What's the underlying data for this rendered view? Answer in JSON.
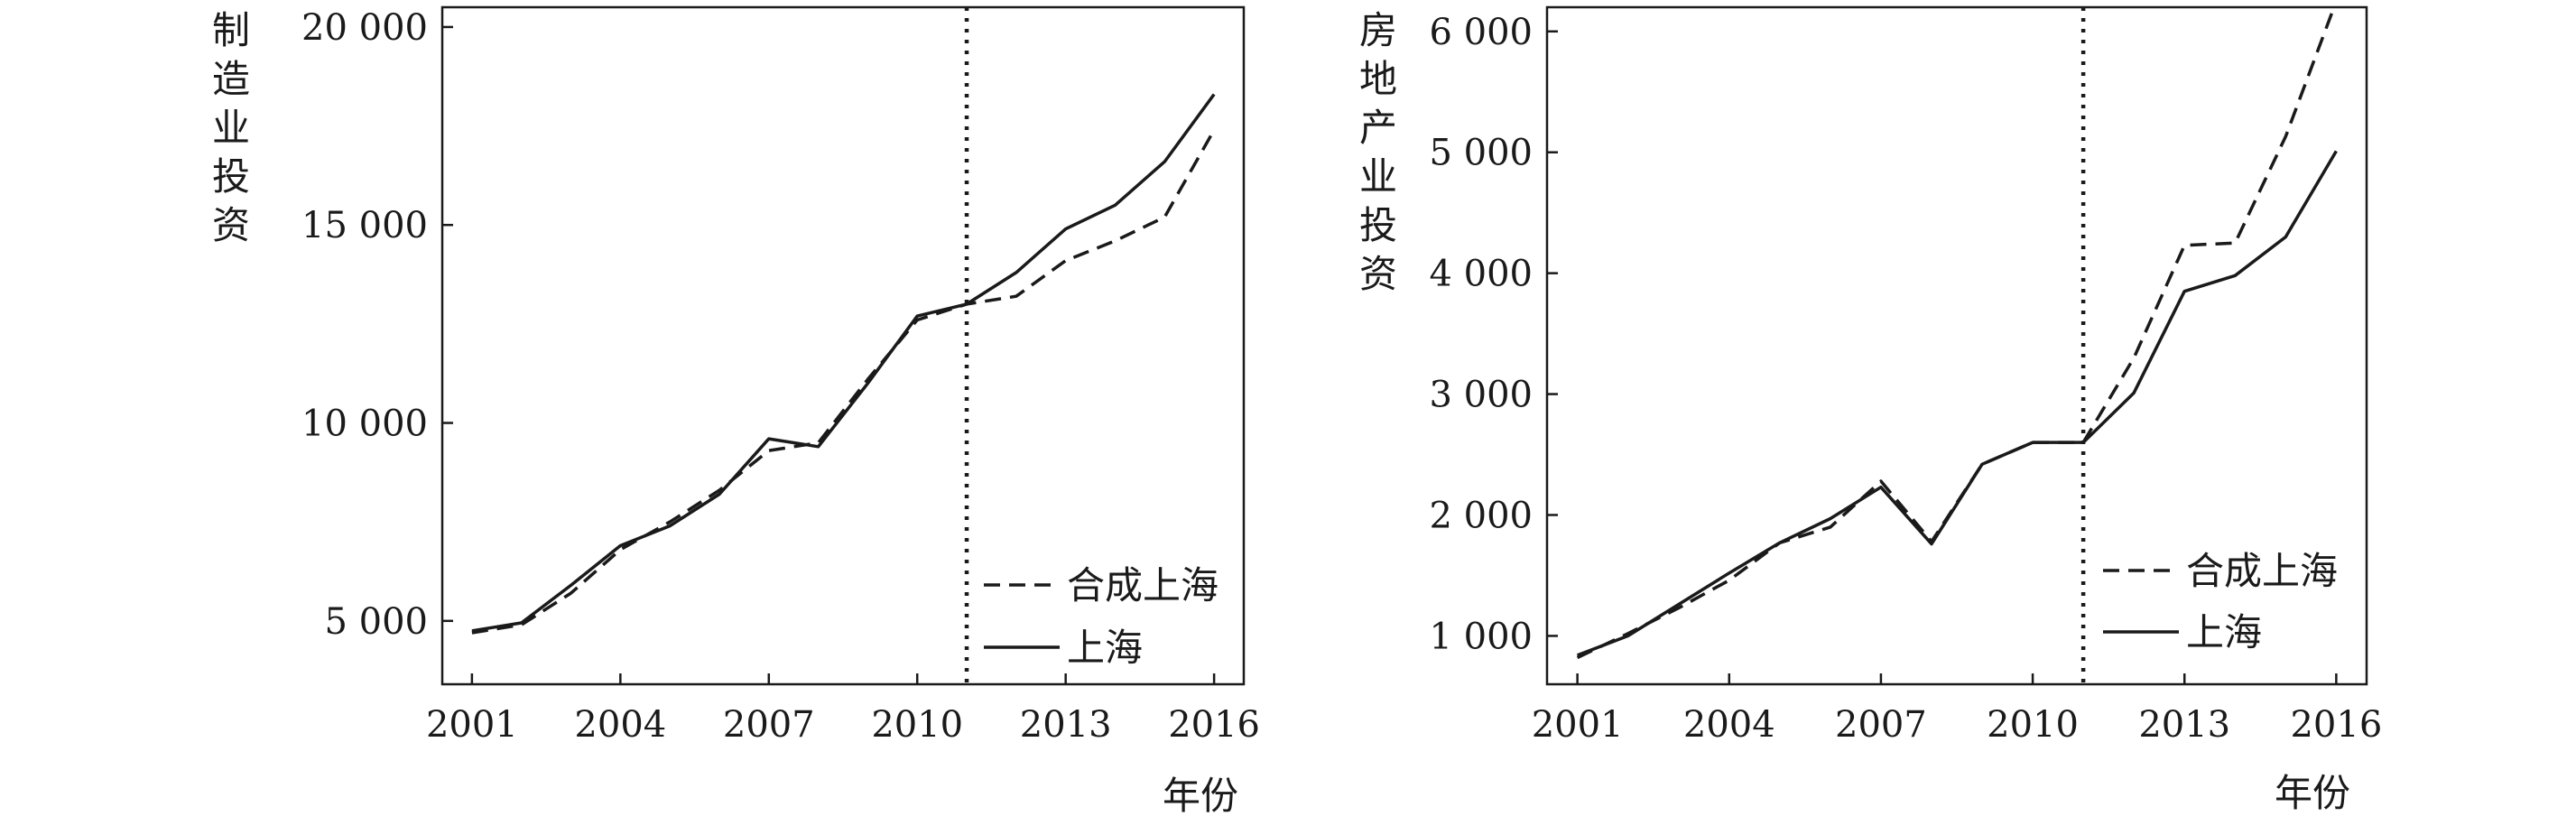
{
  "chart_data": [
    {
      "type": "line",
      "title": "",
      "xlabel": "年份",
      "ylabel": "制造业投资",
      "x": [
        2001,
        2002,
        2003,
        2004,
        2005,
        2006,
        2007,
        2008,
        2009,
        2010,
        2011,
        2012,
        2013,
        2014,
        2015,
        2016
      ],
      "xticks": [
        "2001",
        "2004",
        "2007",
        "2010",
        "2013",
        "2016"
      ],
      "yticks": [
        "5 000",
        "10 000",
        "15 000",
        "20 000"
      ],
      "xlim": [
        2000.4,
        2016.6
      ],
      "ylim": [
        3400,
        20500
      ],
      "yticks_values": [
        5000,
        10000,
        15000,
        20000
      ],
      "xticks_values": [
        2001,
        2004,
        2007,
        2010,
        2013,
        2016
      ],
      "vline": 2011,
      "legend": "bottom-right",
      "series": [
        {
          "name": "合成上海",
          "style": "dashed",
          "values": [
            4700,
            4900,
            5700,
            6800,
            7500,
            8300,
            9300,
            9500,
            11100,
            12600,
            13000,
            13200,
            14100,
            14600,
            15200,
            17400
          ]
        },
        {
          "name": "上海",
          "style": "solid",
          "values": [
            4750,
            4950,
            5900,
            6900,
            7400,
            8200,
            9600,
            9400,
            11000,
            12700,
            13000,
            13800,
            14900,
            15500,
            16600,
            18300
          ]
        }
      ]
    },
    {
      "type": "line",
      "title": "",
      "xlabel": "年份",
      "ylabel": "房地产业投资",
      "x": [
        2001,
        2002,
        2003,
        2004,
        2005,
        2006,
        2007,
        2008,
        2009,
        2010,
        2011,
        2012,
        2013,
        2014,
        2015,
        2016
      ],
      "xticks": [
        "2001",
        "2004",
        "2007",
        "2010",
        "2013",
        "2016"
      ],
      "yticks": [
        "1 000",
        "2 000",
        "3 000",
        "4 000",
        "5 000",
        "6 000"
      ],
      "xlim": [
        2000.4,
        2016.6
      ],
      "ylim": [
        600,
        6200
      ],
      "yticks_values": [
        1000,
        2000,
        3000,
        4000,
        5000,
        6000
      ],
      "xticks_values": [
        2001,
        2004,
        2007,
        2010,
        2013,
        2016
      ],
      "vline": 2011,
      "legend": "bottom-right",
      "series": [
        {
          "name": "合成上海",
          "style": "dashed",
          "values": [
            820,
            1020,
            1230,
            1460,
            1770,
            1900,
            2280,
            1780,
            2420,
            2600,
            2600,
            3300,
            4230,
            4250,
            5130,
            6250
          ]
        },
        {
          "name": "上海",
          "style": "solid",
          "values": [
            840,
            1000,
            1260,
            1520,
            1770,
            1970,
            2230,
            1760,
            2420,
            2600,
            2600,
            3010,
            3850,
            3980,
            4300,
            5010
          ]
        }
      ]
    }
  ]
}
